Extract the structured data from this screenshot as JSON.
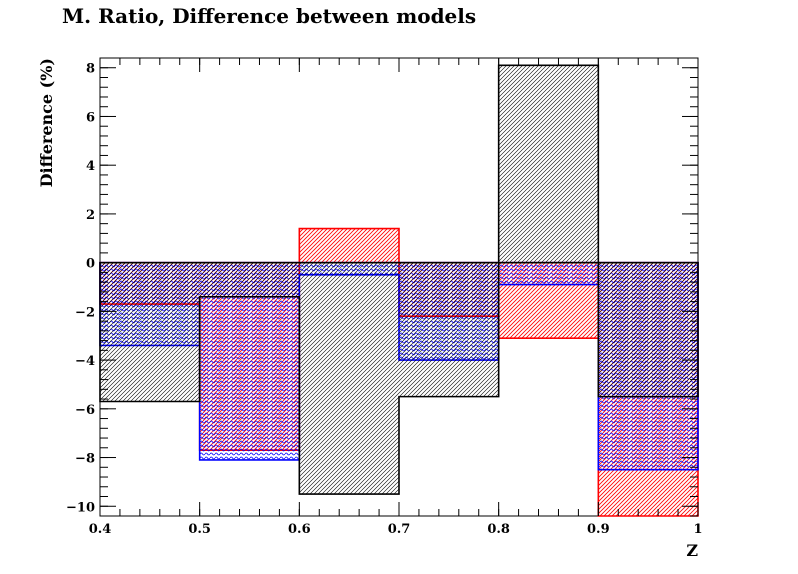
{
  "chart_data": {
    "type": "bar",
    "title": "M. Ratio, Difference between models",
    "xlabel": "Z",
    "ylabel": "Difference (%)",
    "xlim": [
      0.4,
      1.0
    ],
    "ylim": [
      -10.4,
      8.4
    ],
    "x_ticks": [
      "0.4",
      "0.5",
      "0.6",
      "0.7",
      "0.8",
      "0.9",
      "1"
    ],
    "y_ticks": [
      "−10",
      "−8",
      "−6",
      "−4",
      "−2",
      "0",
      "2",
      "4",
      "6",
      "8"
    ],
    "bin_edges": [
      0.4,
      0.5,
      0.6,
      0.7,
      0.8,
      0.9,
      1.0
    ],
    "series": [
      {
        "color": "#ff0000",
        "fill": "hatch-red",
        "values": [
          -1.7,
          -7.7,
          1.4,
          -2.2,
          -3.1,
          -10.4
        ]
      },
      {
        "color": "#0000ff",
        "fill": "hatch-blue",
        "values": [
          -3.4,
          -8.1,
          -0.5,
          -4.0,
          -0.9,
          -8.5
        ]
      },
      {
        "color": "#000000",
        "fill": "hatch-black",
        "values": [
          -5.7,
          -1.4,
          -9.5,
          -5.5,
          8.1,
          -5.5
        ]
      }
    ]
  }
}
